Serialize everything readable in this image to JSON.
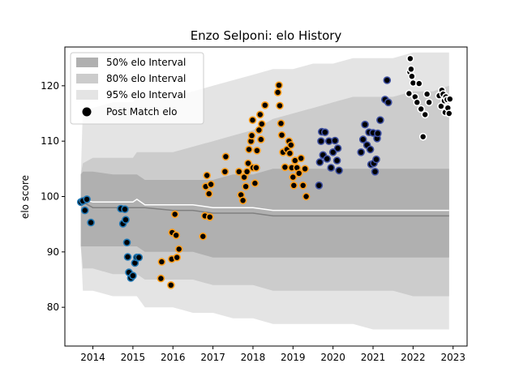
{
  "chart_data": {
    "type": "scatter",
    "title": "Enzo Selponi: elo History",
    "ylabel": "elo score",
    "xlabel": "",
    "xlim": [
      2013.3,
      2023.35
    ],
    "ylim": [
      73,
      127
    ],
    "xticks": [
      2014,
      2015,
      2016,
      2017,
      2018,
      2019,
      2020,
      2021,
      2022,
      2023
    ],
    "yticks": [
      80,
      90,
      100,
      110,
      120
    ],
    "grid": false,
    "legend": {
      "placement": "upper-left",
      "entries": [
        "50% elo Interval",
        "80% elo Interval",
        "95% elo Interval",
        "Post Match elo"
      ]
    },
    "colors": {
      "band50": "#b0b0b0",
      "band80": "#cccccc",
      "band95": "#e4e4e4",
      "median_line": "#808080",
      "mean_line": "#ffffff",
      "point_outline_blue": "#1f77b4",
      "point_outline_orange": "#ff9f1a",
      "point_outline_purple": "#3d4fa0",
      "point_outline_black": "#ffffff"
    },
    "bands": {
      "x": [
        2013.7,
        2013.75,
        2014.0,
        2014.5,
        2015.0,
        2015.1,
        2015.3,
        2016.0,
        2016.5,
        2017.0,
        2017.5,
        2018.0,
        2018.5,
        2019.0,
        2019.5,
        2020.0,
        2020.5,
        2021.0,
        2021.5,
        2022.0,
        2022.5,
        2022.9
      ],
      "p95_upper": [
        104,
        116,
        116,
        117,
        117,
        118,
        118,
        118,
        119,
        120,
        121,
        122,
        123,
        123,
        124,
        124,
        125,
        125,
        125,
        126,
        126,
        126
      ],
      "p80_upper": [
        104,
        106,
        107,
        107,
        107,
        108,
        108,
        108,
        109,
        110,
        111,
        112,
        114,
        115,
        116,
        117,
        118,
        118,
        118,
        119,
        119,
        120
      ],
      "p50_upper": [
        104,
        104.5,
        104.5,
        104,
        104,
        104,
        103,
        103,
        103,
        103,
        104,
        104,
        105,
        105,
        105,
        105,
        105,
        105,
        105,
        105,
        105,
        105
      ],
      "p50_lower": [
        91,
        91,
        91,
        91,
        91,
        91,
        90,
        90,
        90,
        89,
        89,
        89,
        89,
        89,
        89,
        89,
        89,
        89,
        89,
        89,
        89,
        89
      ],
      "p80_lower": [
        91,
        87,
        87,
        86,
        86,
        86,
        85,
        85,
        85,
        84,
        84,
        84,
        83,
        83,
        83,
        83,
        83,
        83,
        83,
        82,
        82,
        82
      ],
      "p95_lower": [
        91,
        83,
        83,
        82,
        82,
        82,
        80,
        80,
        79,
        79,
        78,
        78,
        77,
        77,
        77,
        77,
        77,
        76,
        76,
        76,
        76,
        76
      ],
      "median": [
        99,
        99,
        98,
        98,
        98,
        98,
        98,
        97.5,
        97.5,
        97,
        97,
        97,
        96.5,
        96.5,
        96.5,
        96.5,
        96.5,
        96.5,
        96.5,
        96.5,
        96.5,
        96.5
      ],
      "mean": [
        99,
        99.5,
        99,
        99,
        99,
        99.5,
        98.5,
        98.5,
        98.5,
        98,
        98,
        98,
        97.5,
        97.5,
        97.5,
        97.5,
        97.5,
        97.5,
        97.5,
        97.5,
        97.5,
        97.5
      ]
    },
    "series": [
      {
        "points": [
          [
            2013.7,
            99
          ],
          [
            2013.75,
            99.2
          ],
          [
            2013.8,
            97.5
          ],
          [
            2013.85,
            99.5
          ],
          [
            2013.95,
            95.3
          ],
          [
            2014.7,
            97.8
          ],
          [
            2014.75,
            95.1
          ],
          [
            2014.8,
            97.7
          ],
          [
            2014.82,
            95.8
          ],
          [
            2014.85,
            91.7
          ],
          [
            2014.87,
            89.1
          ],
          [
            2014.9,
            86.3
          ],
          [
            2014.95,
            85.3
          ],
          [
            2015.0,
            85.7
          ],
          [
            2015.05,
            88.0
          ],
          [
            2015.1,
            89.0
          ],
          [
            2015.15,
            89.0
          ]
        ]
      },
      {
        "points": [
          [
            2015.7,
            85.2
          ],
          [
            2015.72,
            88.2
          ],
          [
            2015.95,
            84.0
          ],
          [
            2015.97,
            88.7
          ],
          [
            2015.98,
            93.5
          ],
          [
            2016.05,
            96.8
          ],
          [
            2016.08,
            93.0
          ],
          [
            2016.1,
            89.0
          ],
          [
            2016.15,
            90.5
          ],
          [
            2016.75,
            92.8
          ],
          [
            2016.8,
            96.5
          ],
          [
            2016.82,
            101.8
          ],
          [
            2016.85,
            103.8
          ],
          [
            2016.9,
            100.5
          ],
          [
            2016.92,
            96.3
          ],
          [
            2016.95,
            102.2
          ],
          [
            2017.3,
            104.5
          ],
          [
            2017.32,
            107.2
          ],
          [
            2017.65,
            104.5
          ],
          [
            2017.7,
            100.3
          ],
          [
            2017.75,
            99.3
          ],
          [
            2017.78,
            103.5
          ],
          [
            2017.82,
            101.8
          ],
          [
            2017.85,
            104.5
          ],
          [
            2017.88,
            106.0
          ],
          [
            2017.9,
            108.5
          ],
          [
            2017.95,
            110.0
          ],
          [
            2017.97,
            111.0
          ],
          [
            2017.99,
            113.8
          ],
          [
            2018.0,
            105.2
          ],
          [
            2018.05,
            102.4
          ],
          [
            2018.08,
            105.2
          ],
          [
            2018.1,
            108.3
          ],
          [
            2018.15,
            112.0
          ],
          [
            2018.18,
            114.8
          ],
          [
            2018.2,
            110.3
          ],
          [
            2018.22,
            113.1
          ],
          [
            2018.3,
            116.5
          ],
          [
            2018.62,
            118.8
          ],
          [
            2018.65,
            120.1
          ],
          [
            2018.67,
            116.4
          ],
          [
            2018.7,
            113.2
          ],
          [
            2018.72,
            111.1
          ],
          [
            2018.75,
            108.0
          ],
          [
            2018.8,
            105.3
          ],
          [
            2018.85,
            108.5
          ],
          [
            2018.9,
            110.0
          ],
          [
            2018.92,
            107.8
          ],
          [
            2018.95,
            109.3
          ],
          [
            2018.97,
            105.2
          ],
          [
            2019.0,
            103.5
          ],
          [
            2019.02,
            102.0
          ],
          [
            2019.05,
            106.5
          ],
          [
            2019.1,
            105.2
          ],
          [
            2019.15,
            104.2
          ],
          [
            2019.2,
            106.9
          ],
          [
            2019.25,
            102.0
          ],
          [
            2019.3,
            105.0
          ],
          [
            2019.33,
            100.0
          ]
        ]
      },
      {
        "points": [
          [
            2019.65,
            102.0
          ],
          [
            2019.67,
            106.2
          ],
          [
            2019.7,
            110.0
          ],
          [
            2019.72,
            111.7
          ],
          [
            2019.75,
            107.5
          ],
          [
            2019.8,
            111.6
          ],
          [
            2019.85,
            106.8
          ],
          [
            2019.9,
            110.0
          ],
          [
            2019.95,
            105.2
          ],
          [
            2020.0,
            108.0
          ],
          [
            2020.05,
            110.1
          ],
          [
            2020.1,
            106.5
          ],
          [
            2020.12,
            108.7
          ],
          [
            2020.15,
            104.7
          ],
          [
            2020.7,
            108.0
          ],
          [
            2020.75,
            110.3
          ],
          [
            2020.8,
            113.0
          ],
          [
            2020.85,
            109.3
          ],
          [
            2020.9,
            111.6
          ],
          [
            2020.93,
            108.5
          ],
          [
            2020.95,
            105.8
          ],
          [
            2021.0,
            111.5
          ],
          [
            2021.02,
            106.0
          ],
          [
            2021.05,
            104.5
          ],
          [
            2021.08,
            106.7
          ],
          [
            2021.1,
            110.5
          ],
          [
            2021.12,
            111.4
          ],
          [
            2021.18,
            113.8
          ],
          [
            2021.3,
            117.5
          ],
          [
            2021.35,
            121.0
          ],
          [
            2021.38,
            117.0
          ]
        ]
      },
      {
        "points": [
          [
            2021.9,
            118.6
          ],
          [
            2021.92,
            122.5
          ],
          [
            2021.93,
            124.9
          ],
          [
            2021.95,
            123.0
          ],
          [
            2021.97,
            121.7
          ],
          [
            2022.0,
            120.5
          ],
          [
            2022.05,
            118.0
          ],
          [
            2022.1,
            117.0
          ],
          [
            2022.15,
            120.4
          ],
          [
            2022.2,
            115.8
          ],
          [
            2022.25,
            110.8
          ],
          [
            2022.3,
            114.8
          ],
          [
            2022.35,
            118.5
          ],
          [
            2022.4,
            117.0
          ],
          [
            2022.65,
            118.2
          ],
          [
            2022.7,
            116.3
          ],
          [
            2022.72,
            119.2
          ],
          [
            2022.75,
            118.5
          ],
          [
            2022.78,
            117.3
          ],
          [
            2022.8,
            115.2
          ],
          [
            2022.82,
            118.0
          ],
          [
            2022.85,
            117.5
          ],
          [
            2022.87,
            116.0
          ],
          [
            2022.9,
            115.0
          ],
          [
            2022.92,
            117.6
          ]
        ]
      }
    ]
  }
}
